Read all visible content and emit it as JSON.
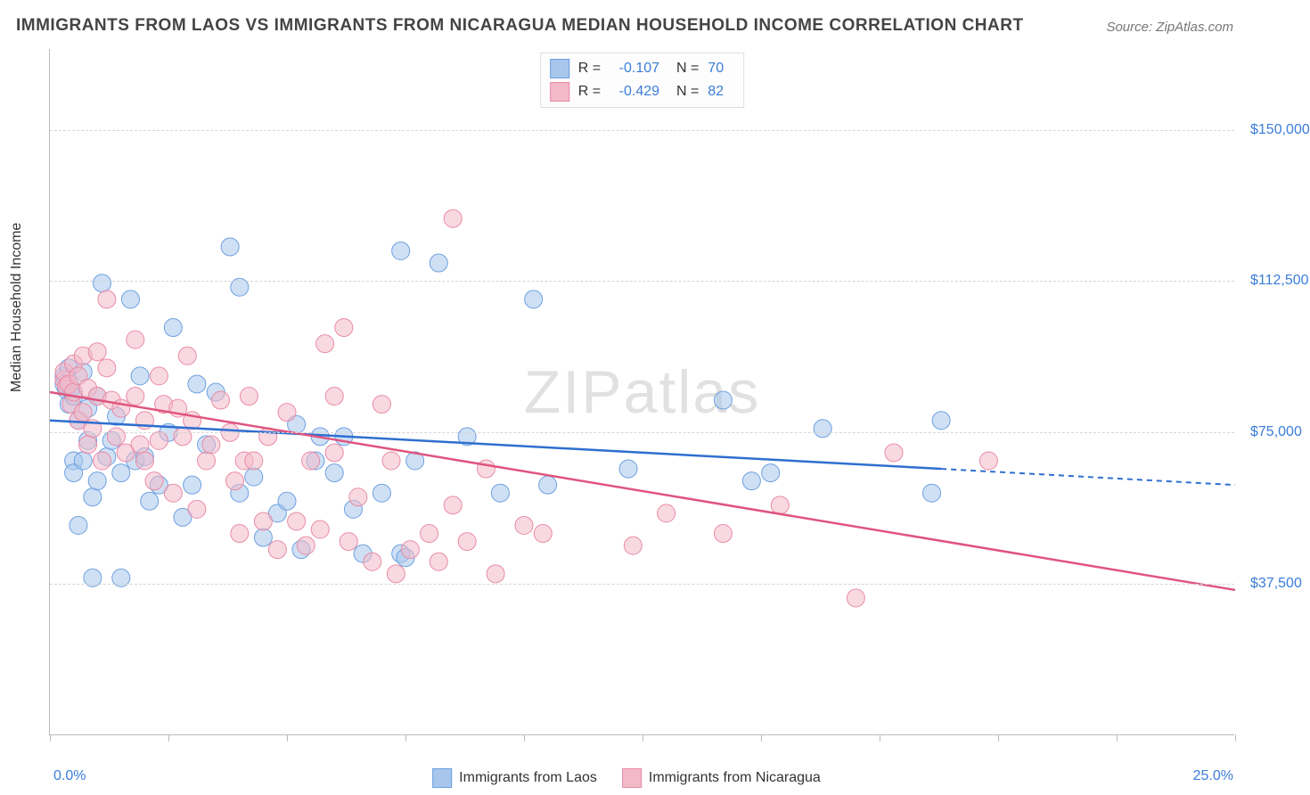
{
  "title": "IMMIGRANTS FROM LAOS VS IMMIGRANTS FROM NICARAGUA MEDIAN HOUSEHOLD INCOME CORRELATION CHART",
  "source": "Source: ZipAtlas.com",
  "watermark": "ZIPatlas",
  "chart": {
    "type": "scatter",
    "ylabel": "Median Household Income",
    "xlim": [
      0,
      25
    ],
    "ylim": [
      0,
      170000
    ],
    "x_axis_labels": {
      "min": "0.0%",
      "max": "25.0%"
    },
    "ytick_values": [
      37500,
      75000,
      112500,
      150000
    ],
    "ytick_labels": [
      "$37,500",
      "$75,000",
      "$112,500",
      "$150,000"
    ],
    "xtick_positions": [
      0,
      2.5,
      5,
      7.5,
      10,
      12.5,
      15,
      17.5,
      20,
      22.5,
      25
    ],
    "background_color": "#ffffff",
    "grid_color": "#d5d5d5",
    "axis_color": "#bbbbbb",
    "tick_label_color": "#3b7dd8",
    "marker_radius": 10,
    "marker_opacity": 0.55,
    "line_width": 2.5,
    "series": [
      {
        "name": "Immigrants from Laos",
        "color_fill": "#a8c6ec",
        "color_stroke": "#6da0e0",
        "line_color": "#2e6fd0",
        "R": "-0.107",
        "N": "70",
        "trend": {
          "x1": 0,
          "y1": 78000,
          "x2": 18.8,
          "y2": 66000,
          "extrap_x2": 25,
          "extrap_y2": 62000
        },
        "points": [
          [
            0.3,
            89000
          ],
          [
            0.3,
            87000
          ],
          [
            0.35,
            85500
          ],
          [
            0.4,
            91000
          ],
          [
            0.4,
            82000
          ],
          [
            0.45,
            86000
          ],
          [
            0.5,
            68000
          ],
          [
            0.5,
            84000
          ],
          [
            0.5,
            65000
          ],
          [
            0.6,
            52000
          ],
          [
            0.6,
            78000
          ],
          [
            0.7,
            90000
          ],
          [
            0.7,
            68000
          ],
          [
            0.8,
            73000
          ],
          [
            0.8,
            81000
          ],
          [
            0.9,
            39000
          ],
          [
            0.9,
            59000
          ],
          [
            1.0,
            63000
          ],
          [
            1.0,
            84000
          ],
          [
            1.1,
            112000
          ],
          [
            1.2,
            69000
          ],
          [
            1.3,
            73000
          ],
          [
            1.4,
            79000
          ],
          [
            1.5,
            65000
          ],
          [
            1.5,
            39000
          ],
          [
            1.7,
            108000
          ],
          [
            1.8,
            68000
          ],
          [
            1.9,
            89000
          ],
          [
            2.0,
            69000
          ],
          [
            2.1,
            58000
          ],
          [
            2.3,
            62000
          ],
          [
            2.5,
            75000
          ],
          [
            2.6,
            101000
          ],
          [
            2.8,
            54000
          ],
          [
            3.0,
            62000
          ],
          [
            3.1,
            87000
          ],
          [
            3.3,
            72000
          ],
          [
            3.8,
            121000
          ],
          [
            4.0,
            60000
          ],
          [
            4.0,
            111000
          ],
          [
            4.3,
            64000
          ],
          [
            4.5,
            49000
          ],
          [
            4.8,
            55000
          ],
          [
            5.0,
            58000
          ],
          [
            5.2,
            77000
          ],
          [
            5.3,
            46000
          ],
          [
            5.6,
            68000
          ],
          [
            5.7,
            74000
          ],
          [
            6.0,
            65000
          ],
          [
            6.2,
            74000
          ],
          [
            6.4,
            56000
          ],
          [
            6.6,
            45000
          ],
          [
            7.0,
            60000
          ],
          [
            7.4,
            120000
          ],
          [
            7.4,
            45000
          ],
          [
            7.5,
            44000
          ],
          [
            7.7,
            68000
          ],
          [
            8.2,
            117000
          ],
          [
            8.8,
            74000
          ],
          [
            9.5,
            60000
          ],
          [
            10.2,
            108000
          ],
          [
            10.5,
            62000
          ],
          [
            12.2,
            66000
          ],
          [
            14.2,
            83000
          ],
          [
            14.8,
            63000
          ],
          [
            15.2,
            65000
          ],
          [
            16.3,
            76000
          ],
          [
            18.6,
            60000
          ],
          [
            18.8,
            78000
          ],
          [
            3.5,
            85000
          ]
        ]
      },
      {
        "name": "Immigrants from Nicaragua",
        "color_fill": "#f2b9c8",
        "color_stroke": "#e98ba6",
        "line_color": "#e0557f",
        "R": "-0.429",
        "N": "82",
        "trend": {
          "x1": 0,
          "y1": 85000,
          "x2": 25,
          "y2": 36000
        },
        "points": [
          [
            0.3,
            88000
          ],
          [
            0.3,
            90000
          ],
          [
            0.35,
            86500
          ],
          [
            0.4,
            87000
          ],
          [
            0.45,
            82000
          ],
          [
            0.5,
            92000
          ],
          [
            0.5,
            85000
          ],
          [
            0.6,
            89000
          ],
          [
            0.6,
            78000
          ],
          [
            0.7,
            94000
          ],
          [
            0.7,
            80000
          ],
          [
            0.8,
            86000
          ],
          [
            0.9,
            76000
          ],
          [
            1.0,
            84000
          ],
          [
            1.1,
            68000
          ],
          [
            1.2,
            91000
          ],
          [
            1.2,
            108000
          ],
          [
            1.3,
            83000
          ],
          [
            1.4,
            74000
          ],
          [
            1.5,
            81000
          ],
          [
            1.6,
            70000
          ],
          [
            1.8,
            84000
          ],
          [
            1.8,
            98000
          ],
          [
            1.9,
            72000
          ],
          [
            2.0,
            68000
          ],
          [
            2.0,
            78000
          ],
          [
            2.2,
            63000
          ],
          [
            2.3,
            73000
          ],
          [
            2.3,
            89000
          ],
          [
            2.4,
            82000
          ],
          [
            2.6,
            60000
          ],
          [
            2.8,
            74000
          ],
          [
            2.9,
            94000
          ],
          [
            3.0,
            78000
          ],
          [
            3.1,
            56000
          ],
          [
            3.3,
            68000
          ],
          [
            3.4,
            72000
          ],
          [
            3.6,
            83000
          ],
          [
            3.8,
            75000
          ],
          [
            4.0,
            50000
          ],
          [
            4.1,
            68000
          ],
          [
            4.3,
            68000
          ],
          [
            4.5,
            53000
          ],
          [
            4.6,
            74000
          ],
          [
            4.8,
            46000
          ],
          [
            5.0,
            80000
          ],
          [
            5.2,
            53000
          ],
          [
            5.4,
            47000
          ],
          [
            5.5,
            68000
          ],
          [
            5.7,
            51000
          ],
          [
            5.8,
            97000
          ],
          [
            6.0,
            70000
          ],
          [
            6.2,
            101000
          ],
          [
            6.3,
            48000
          ],
          [
            6.5,
            59000
          ],
          [
            6.8,
            43000
          ],
          [
            7.0,
            82000
          ],
          [
            7.2,
            68000
          ],
          [
            7.3,
            40000
          ],
          [
            7.6,
            46000
          ],
          [
            8.0,
            50000
          ],
          [
            8.2,
            43000
          ],
          [
            8.5,
            57000
          ],
          [
            8.5,
            128000
          ],
          [
            8.8,
            48000
          ],
          [
            9.2,
            66000
          ],
          [
            9.4,
            40000
          ],
          [
            10.0,
            52000
          ],
          [
            10.4,
            50000
          ],
          [
            12.3,
            47000
          ],
          [
            13.0,
            55000
          ],
          [
            14.2,
            50000
          ],
          [
            15.4,
            57000
          ],
          [
            17.0,
            34000
          ],
          [
            17.8,
            70000
          ],
          [
            19.8,
            68000
          ],
          [
            2.7,
            81000
          ],
          [
            3.9,
            63000
          ],
          [
            1.0,
            95000
          ],
          [
            0.8,
            72000
          ],
          [
            4.2,
            84000
          ],
          [
            6.0,
            84000
          ]
        ]
      }
    ]
  }
}
